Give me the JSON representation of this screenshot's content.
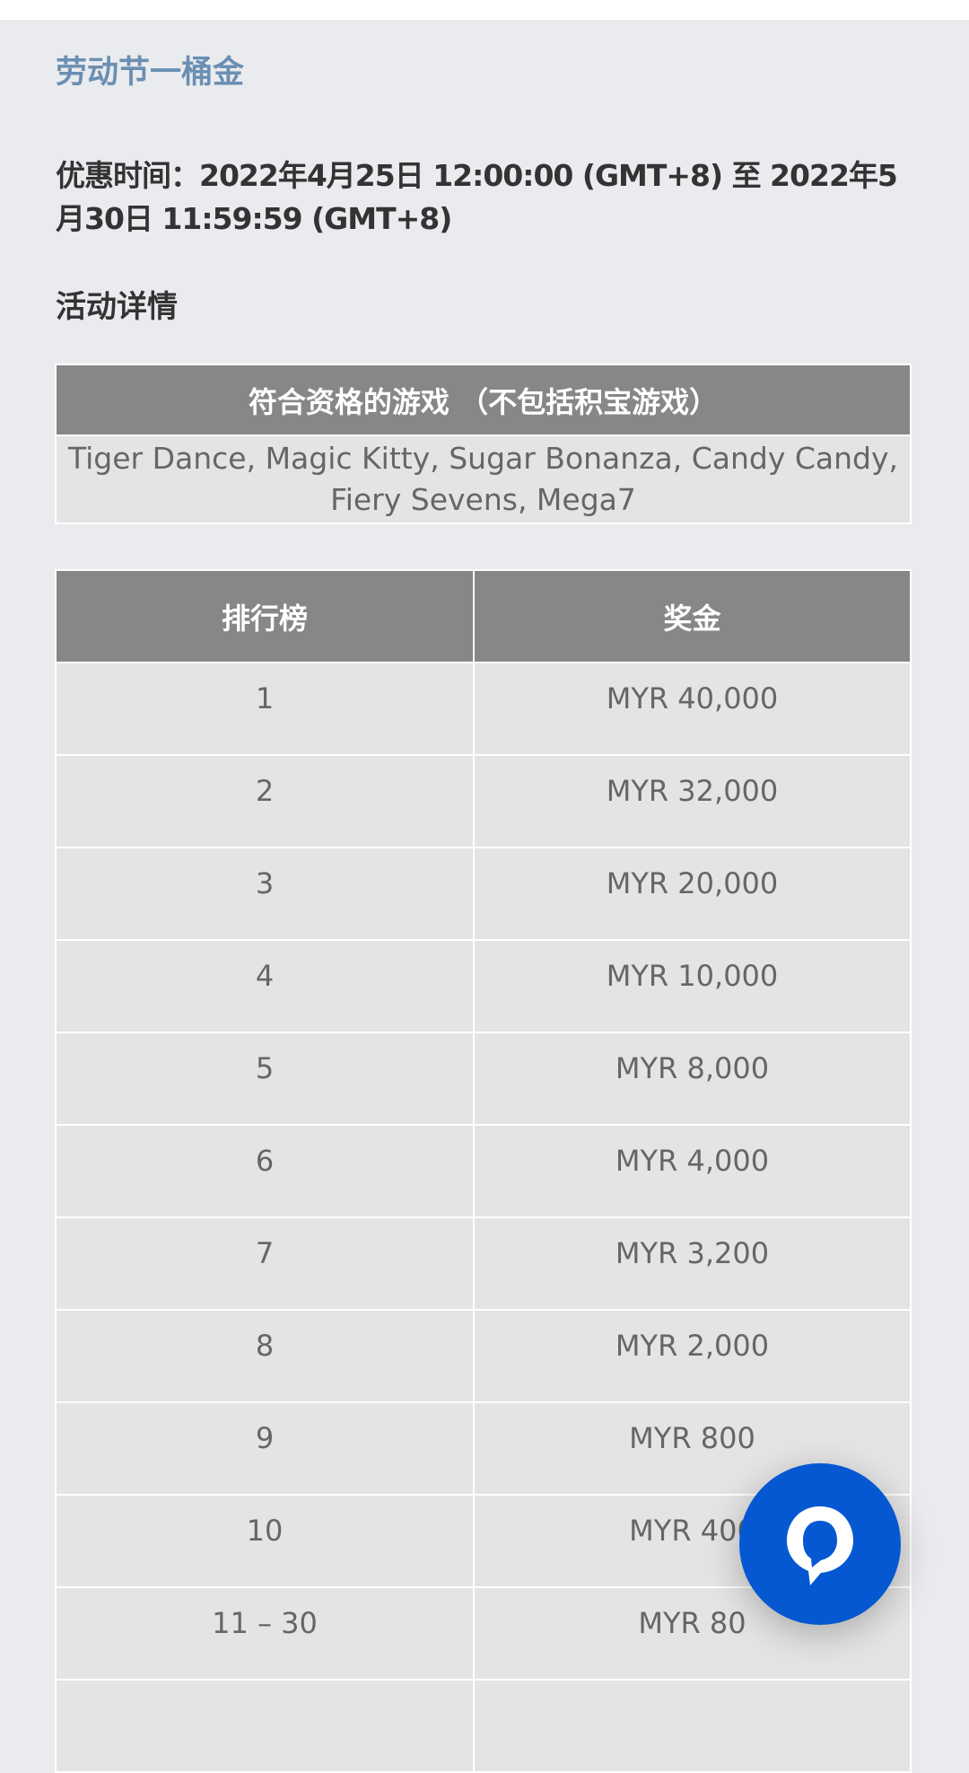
{
  "promo": {
    "title": "劳动节一桶金",
    "date": "优惠时间：2022年4月25日 12:00:00 (GMT+8) 至 2022年5月30日 11:59:59 (GMT+8)",
    "details_heading": "活动详情"
  },
  "games_table": {
    "header": "符合资格的游戏 （不包括积宝游戏）",
    "games": "Tiger Dance, Magic Kitty, Sugar Bonanza, Candy Candy, Fiery Sevens, Mega7"
  },
  "prize_table": {
    "headers": [
      "排行榜",
      "奖金"
    ],
    "rows": [
      [
        "1",
        "MYR 40,000"
      ],
      [
        "2",
        "MYR 32,000"
      ],
      [
        "3",
        "MYR 20,000"
      ],
      [
        "4",
        "MYR 10,000"
      ],
      [
        "5",
        "MYR 8,000"
      ],
      [
        "6",
        "MYR 4,000"
      ],
      [
        "7",
        "MYR 3,200"
      ],
      [
        "8",
        "MYR 2,000"
      ],
      [
        "9",
        "MYR 800"
      ],
      [
        "10",
        "MYR 400"
      ],
      [
        "11 – 30",
        "MYR 80"
      ],
      [
        "",
        ""
      ]
    ]
  },
  "chat": {
    "icon": "chat-bubble-icon",
    "color": "#0558d2"
  }
}
